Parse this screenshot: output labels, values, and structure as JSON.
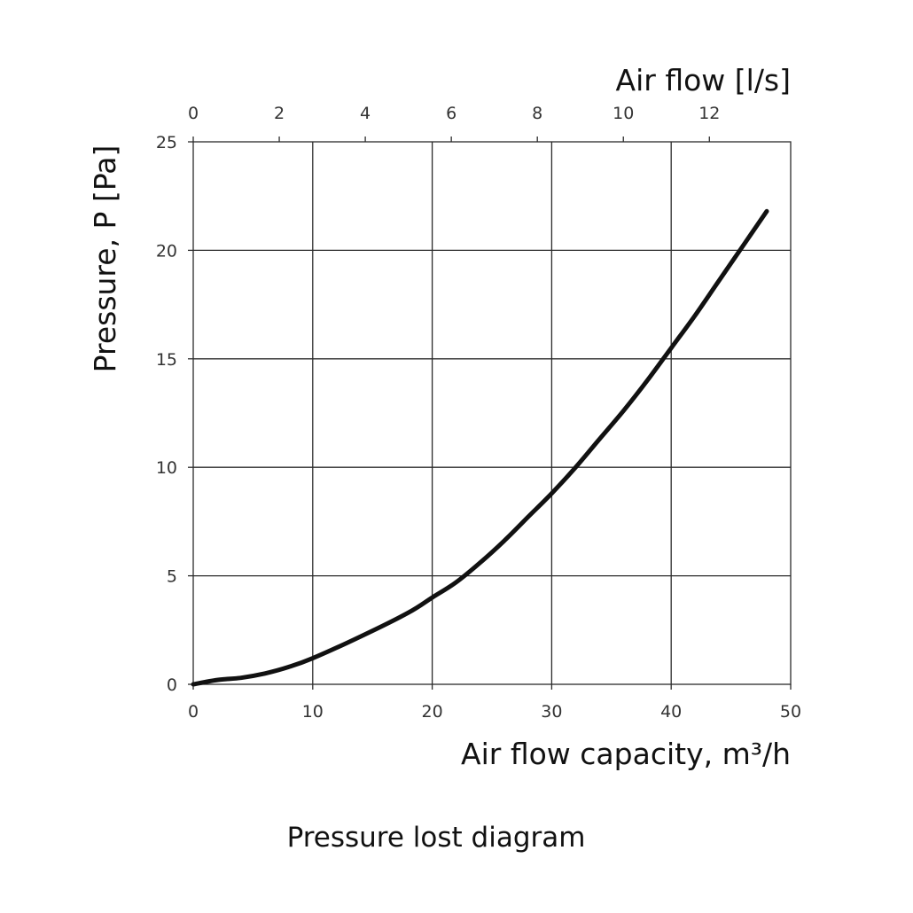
{
  "chart_data": {
    "type": "line",
    "title": "",
    "caption": "Pressure lost diagram",
    "xlabel": "Air flow capacity, m³/h",
    "x2label": "Air flow [l/s]",
    "ylabel": "Pressure, P [Pa]",
    "xlim": [
      0,
      50
    ],
    "x2lim": [
      0,
      13.89
    ],
    "ylim": [
      0,
      25
    ],
    "x_ticks": [
      0,
      10,
      20,
      30,
      40,
      50
    ],
    "x2_ticks": [
      0,
      2,
      4,
      6,
      8,
      10,
      12
    ],
    "y_ticks": [
      0,
      5,
      10,
      15,
      20,
      25
    ],
    "grid": true,
    "series": [
      {
        "x": [
          0,
          2,
          4,
          6,
          8,
          10,
          14,
          18,
          20,
          22,
          24,
          26,
          28,
          30,
          32,
          34,
          36,
          38,
          40,
          42,
          44,
          46,
          48
        ],
        "y": [
          0,
          0.2,
          0.3,
          0.5,
          0.8,
          1.2,
          2.2,
          3.3,
          4.0,
          4.7,
          5.6,
          6.6,
          7.7,
          8.8,
          10.0,
          11.3,
          12.6,
          14.0,
          15.5,
          17.0,
          18.6,
          20.2,
          21.8
        ]
      }
    ]
  }
}
